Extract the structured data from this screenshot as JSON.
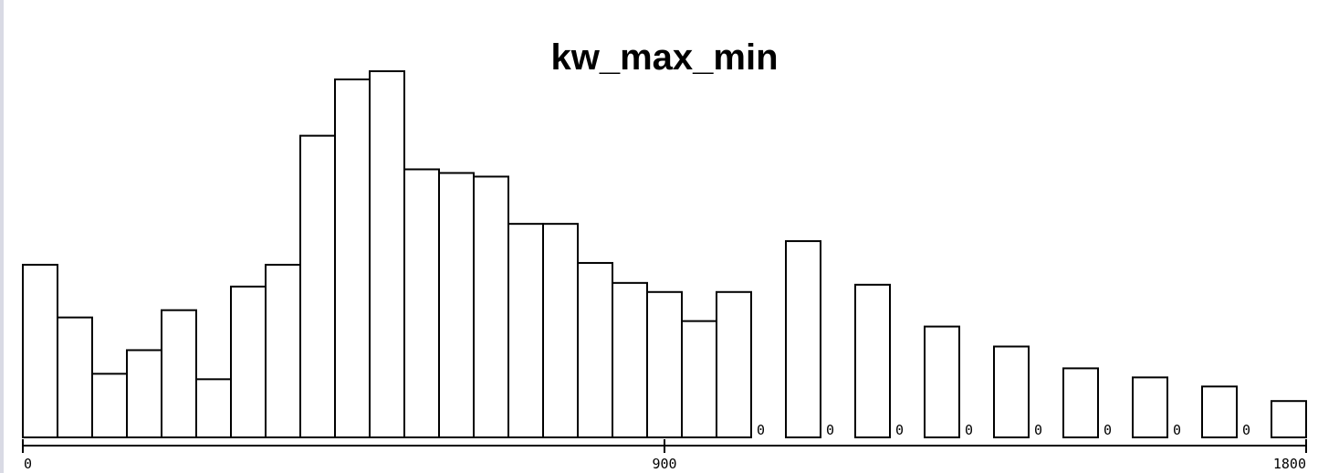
{
  "chart_data": {
    "type": "bar",
    "title": "kw_max_min",
    "xlabel": "",
    "ylabel": "",
    "xlim": [
      0,
      1800
    ],
    "bin_width": 48.65,
    "x_ticks": [
      "0",
      "900",
      "1800"
    ],
    "ylim": [
      0,
      405
    ],
    "values": [
      190,
      132,
      70,
      96,
      140,
      64,
      166,
      190,
      332,
      394,
      403,
      295,
      291,
      287,
      235,
      235,
      192,
      170,
      160,
      128,
      160,
      0,
      216,
      0,
      168,
      0,
      122,
      0,
      100,
      0,
      76,
      0,
      66,
      0,
      56,
      0,
      40
    ],
    "zero_label": "0",
    "grid": false,
    "colors": {
      "bar_fill": "#ffffff",
      "bar_stroke": "#000000",
      "edge": "#d9dae4"
    }
  }
}
